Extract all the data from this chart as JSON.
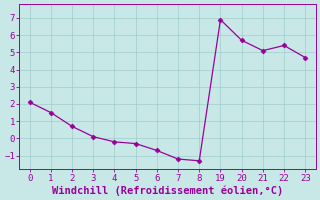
{
  "x_indices": [
    0,
    1,
    2,
    3,
    4,
    5,
    6,
    7,
    8,
    9,
    10,
    11,
    12,
    13
  ],
  "x_labels": [
    "0",
    "1",
    "2",
    "3",
    "4",
    "5",
    "6",
    "7",
    "8",
    "19",
    "20",
    "21",
    "22",
    "23"
  ],
  "y": [
    2.1,
    1.5,
    0.7,
    0.1,
    -0.2,
    -0.3,
    -0.7,
    -1.2,
    -1.3,
    6.9,
    5.7,
    5.1,
    5.4,
    4.7
  ],
  "line_color": "#990099",
  "marker": "D",
  "marker_size": 2.5,
  "bg_color": "#c8e8e8",
  "grid_color": "#a0cccc",
  "xlabel": "Windchill (Refroidissement éolien,°C)",
  "yticks": [
    -1,
    0,
    1,
    2,
    3,
    4,
    5,
    6,
    7
  ],
  "ylim": [
    -1.8,
    7.8
  ],
  "xlim": [
    -0.5,
    13.5
  ],
  "tick_color": "#990099",
  "label_color": "#990099",
  "xlabel_fontsize": 7.5,
  "tick_fontsize": 6.5,
  "linewidth": 0.9
}
